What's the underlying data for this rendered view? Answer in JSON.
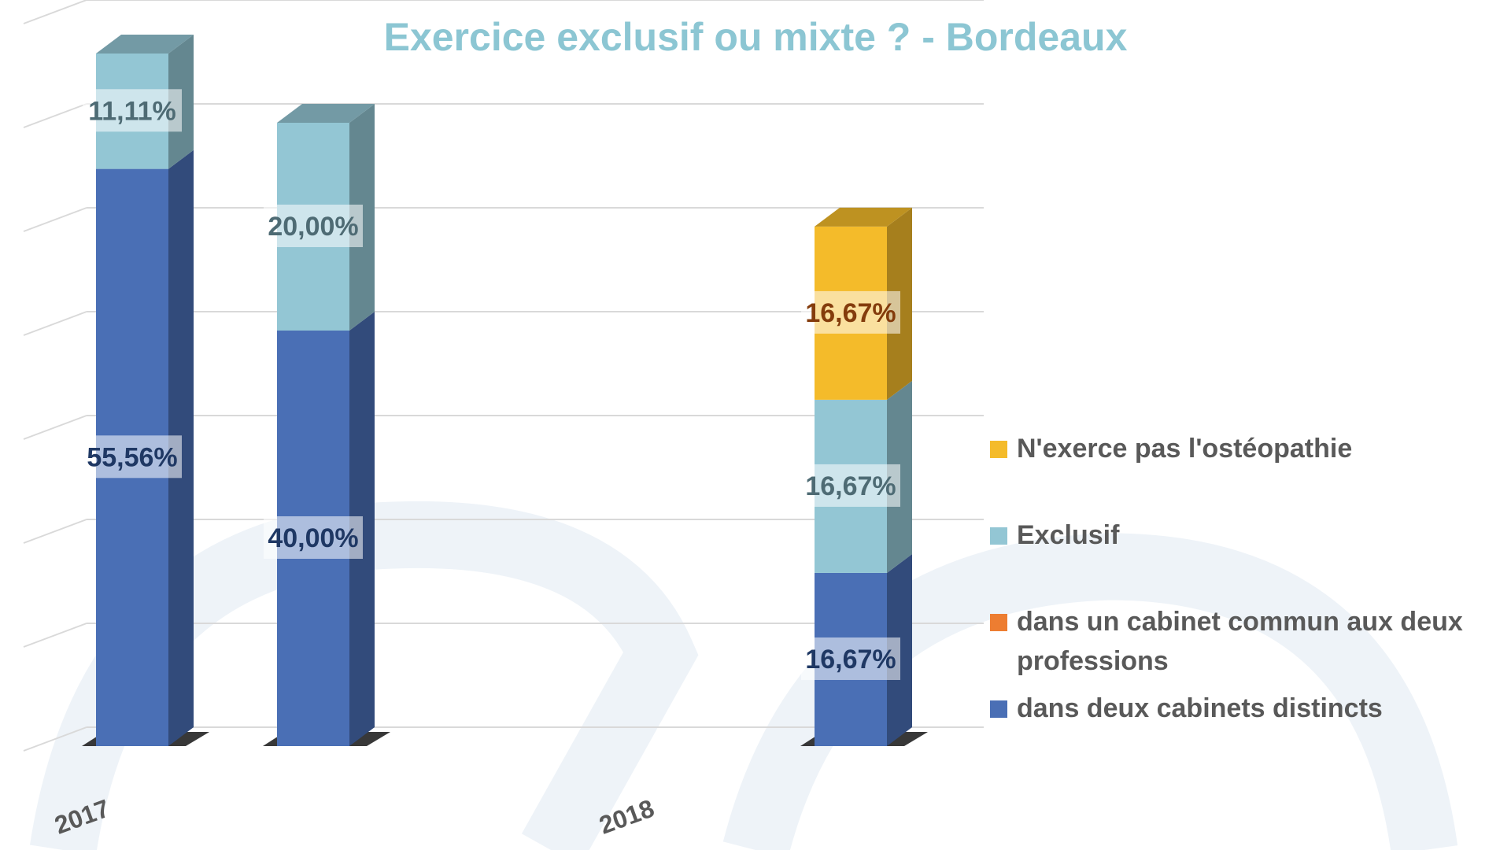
{
  "chart_data": {
    "type": "bar",
    "stacked": true,
    "three_d": true,
    "title": "Exercice exclusif ou mixte ? - Bordeaux",
    "xlabel": "",
    "ylabel": "",
    "ylim": [
      0,
      100
    ],
    "grid": true,
    "legend_position": "right",
    "groups": [
      "2017",
      "2018"
    ],
    "bars": [
      {
        "group": "2017",
        "segments": {
          "dans deux cabinets distincts": 55.56,
          "dans un cabinet commun aux deux professions": 0,
          "Exclusif": 11.11,
          "N'exerce pas l'ostéopathie": 0
        }
      },
      {
        "group": "2017",
        "segments": {
          "dans deux cabinets distincts": 40.0,
          "dans un cabinet commun aux deux professions": 0,
          "Exclusif": 20.0,
          "N'exerce pas l'ostéopathie": 0
        }
      },
      {
        "group": "2018",
        "segments": {
          "dans deux cabinets distincts": 16.67,
          "dans un cabinet commun aux deux professions": 0,
          "Exclusif": 16.67,
          "N'exerce pas l'ostéopathie": 16.67
        }
      }
    ],
    "series": [
      {
        "name": "dans deux cabinets distincts",
        "color": "#4a6fb5",
        "label_text_color": "#1f3864"
      },
      {
        "name": "dans un cabinet commun aux deux professions",
        "color": "#ed7d31",
        "label_text_color": "#843c0c"
      },
      {
        "name": "Exclusif",
        "color": "#93c6d4",
        "label_text_color": "#4e6b74"
      },
      {
        "name": "N'exerce pas l'ostéopathie",
        "color": "#f4bb2a",
        "label_text_color": "#843c0c"
      }
    ],
    "data_labels": [
      {
        "bar": 0,
        "series": "dans deux cabinets distincts",
        "text": "55,56%"
      },
      {
        "bar": 0,
        "series": "Exclusif",
        "text": "11,11%"
      },
      {
        "bar": 1,
        "series": "dans deux cabinets distincts",
        "text": "40,00%"
      },
      {
        "bar": 1,
        "series": "Exclusif",
        "text": "20,00%"
      },
      {
        "bar": 2,
        "series": "dans deux cabinets distincts",
        "text": "16,67%"
      },
      {
        "bar": 2,
        "series": "Exclusif",
        "text": "16,67%"
      },
      {
        "bar": 2,
        "series": "N'exerce pas l'ostéopathie",
        "text": "16,67%"
      }
    ],
    "legend": [
      {
        "name": "N'exerce pas l'ostéopathie",
        "color": "#f4bb2a"
      },
      {
        "name": "Exclusif",
        "color": "#93c6d4"
      },
      {
        "name": "dans un cabinet commun aux deux professions",
        "color": "#ed7d31"
      },
      {
        "name": "dans deux cabinets distincts",
        "color": "#4a6fb5"
      }
    ]
  }
}
